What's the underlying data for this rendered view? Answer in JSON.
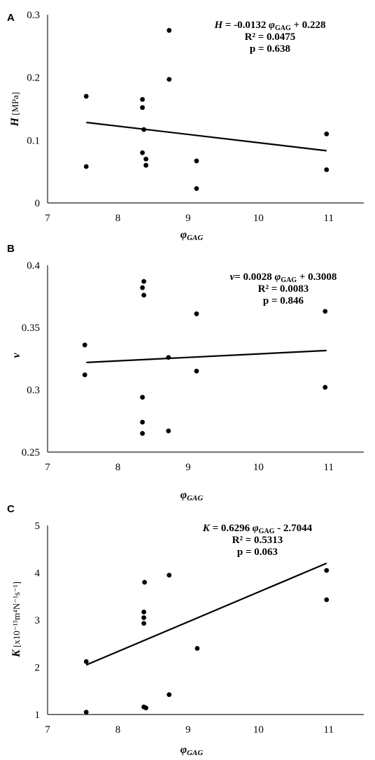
{
  "chart_data": [
    {
      "type": "scatter",
      "panel_label": "A",
      "ylabel": {
        "italic": "H",
        "rest": " [MPa]"
      },
      "xlabel": {
        "main": "φ",
        "sub": "GAG"
      },
      "xlim": [
        7,
        11.5
      ],
      "ylim": [
        0,
        0.3
      ],
      "xticks": [
        "7",
        "8",
        "9",
        "10",
        "11"
      ],
      "yticks": [
        "0",
        "0.1",
        "0.2",
        "0.3"
      ],
      "points": [
        {
          "x": 7.55,
          "y": 0.17
        },
        {
          "x": 7.55,
          "y": 0.058
        },
        {
          "x": 8.35,
          "y": 0.165
        },
        {
          "x": 8.35,
          "y": 0.152
        },
        {
          "x": 8.37,
          "y": 0.117
        },
        {
          "x": 8.35,
          "y": 0.08
        },
        {
          "x": 8.4,
          "y": 0.07
        },
        {
          "x": 8.4,
          "y": 0.06
        },
        {
          "x": 8.73,
          "y": 0.197
        },
        {
          "x": 8.73,
          "y": 0.275
        },
        {
          "x": 9.12,
          "y": 0.067
        },
        {
          "x": 9.12,
          "y": 0.023
        },
        {
          "x": 10.97,
          "y": 0.11
        },
        {
          "x": 10.97,
          "y": 0.053
        }
      ],
      "trendline": {
        "slope": -0.0132,
        "intercept": 0.228,
        "x_range": [
          7.55,
          10.97
        ]
      },
      "annotation": {
        "eq_var": "H",
        "eq_pre": " = -0.0132 ",
        "eq_phi": "φ",
        "eq_sub": "GAG",
        "eq_post": " + 0.228",
        "r2": "R² = 0.0475",
        "p": "p = 0.638"
      }
    },
    {
      "type": "scatter",
      "panel_label": "B",
      "ylabel": {
        "italic": "ν",
        "rest": ""
      },
      "xlabel": {
        "main": "φ",
        "sub": "GAG"
      },
      "xlim": [
        7,
        11.5
      ],
      "ylim": [
        0.25,
        0.4
      ],
      "xticks": [
        "7",
        "8",
        "9",
        "10",
        "11"
      ],
      "yticks": [
        "0.25",
        "0.3",
        "0.35",
        "0.4"
      ],
      "points": [
        {
          "x": 7.53,
          "y": 0.336
        },
        {
          "x": 7.53,
          "y": 0.312
        },
        {
          "x": 8.37,
          "y": 0.387
        },
        {
          "x": 8.35,
          "y": 0.382
        },
        {
          "x": 8.37,
          "y": 0.376
        },
        {
          "x": 8.35,
          "y": 0.294
        },
        {
          "x": 8.35,
          "y": 0.274
        },
        {
          "x": 8.35,
          "y": 0.265
        },
        {
          "x": 8.72,
          "y": 0.326
        },
        {
          "x": 8.72,
          "y": 0.267
        },
        {
          "x": 9.12,
          "y": 0.361
        },
        {
          "x": 9.12,
          "y": 0.315
        },
        {
          "x": 10.95,
          "y": 0.363
        },
        {
          "x": 10.95,
          "y": 0.302
        }
      ],
      "trendline": {
        "slope": 0.0028,
        "intercept": 0.3008,
        "x_range": [
          7.55,
          10.97
        ]
      },
      "annotation": {
        "eq_var": "ν",
        "eq_pre": "= 0.0028 ",
        "eq_phi": "φ",
        "eq_sub": "GAG",
        "eq_post": " + 0.3008",
        "r2": "R² = 0.0083",
        "p": "p = 0.846"
      }
    },
    {
      "type": "scatter",
      "panel_label": "C",
      "ylabel": {
        "italic": "K",
        "rest": " [x10⁻¹⁵m⁴N⁻¹s⁻¹]"
      },
      "xlabel": {
        "main": "φ",
        "sub": "GAG"
      },
      "xlim": [
        7,
        11.5
      ],
      "ylim": [
        1,
        5
      ],
      "xticks": [
        "7",
        "8",
        "9",
        "10",
        "11"
      ],
      "yticks": [
        "1",
        "2",
        "3",
        "4",
        "5"
      ],
      "points": [
        {
          "x": 7.55,
          "y": 2.12
        },
        {
          "x": 7.55,
          "y": 1.05
        },
        {
          "x": 8.38,
          "y": 3.8
        },
        {
          "x": 8.37,
          "y": 3.17
        },
        {
          "x": 8.37,
          "y": 3.05
        },
        {
          "x": 8.37,
          "y": 2.93
        },
        {
          "x": 8.37,
          "y": 1.16
        },
        {
          "x": 8.4,
          "y": 1.14
        },
        {
          "x": 8.73,
          "y": 3.95
        },
        {
          "x": 8.73,
          "y": 1.42
        },
        {
          "x": 9.13,
          "y": 2.4
        },
        {
          "x": 10.97,
          "y": 4.05
        },
        {
          "x": 10.97,
          "y": 3.43
        }
      ],
      "trendline": {
        "slope": 0.6296,
        "intercept": -2.7044,
        "x_range": [
          7.55,
          10.97
        ]
      },
      "annotation": {
        "eq_var": "K",
        "eq_pre": " = 0.6296 ",
        "eq_phi": "φ",
        "eq_sub": "GAG",
        "eq_post": " - 2.7044",
        "r2": "R² = 0.5313",
        "p": "p = 0.063"
      }
    }
  ]
}
